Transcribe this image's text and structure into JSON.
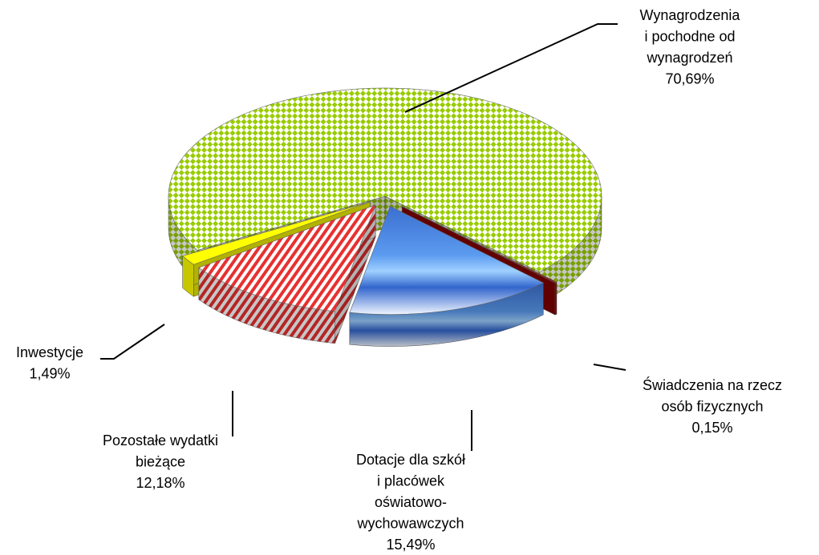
{
  "chart_data": {
    "type": "pie3d",
    "categories": [
      [
        "Wynagrodzenia",
        "i pochodne od",
        "wynagrodzeń"
      ],
      [
        "Świadczenia na rzecz",
        "osób fizycznych"
      ],
      [
        "Dotacje dla szkół",
        "i placówek",
        "oświatowo-",
        "wychowawczych"
      ],
      [
        "Pozostałe wydatki",
        "bieżące"
      ],
      [
        "Inwestycje"
      ]
    ],
    "values": [
      70.69,
      0.15,
      15.49,
      12.18,
      1.49
    ],
    "value_labels": [
      "70,69%",
      "0,15%",
      "15,49%",
      "12,18%",
      "1,49%"
    ],
    "colors": [
      "#99cc00",
      "#8b0000",
      "#5b9bef",
      "#e83030",
      "#ffff00"
    ]
  }
}
